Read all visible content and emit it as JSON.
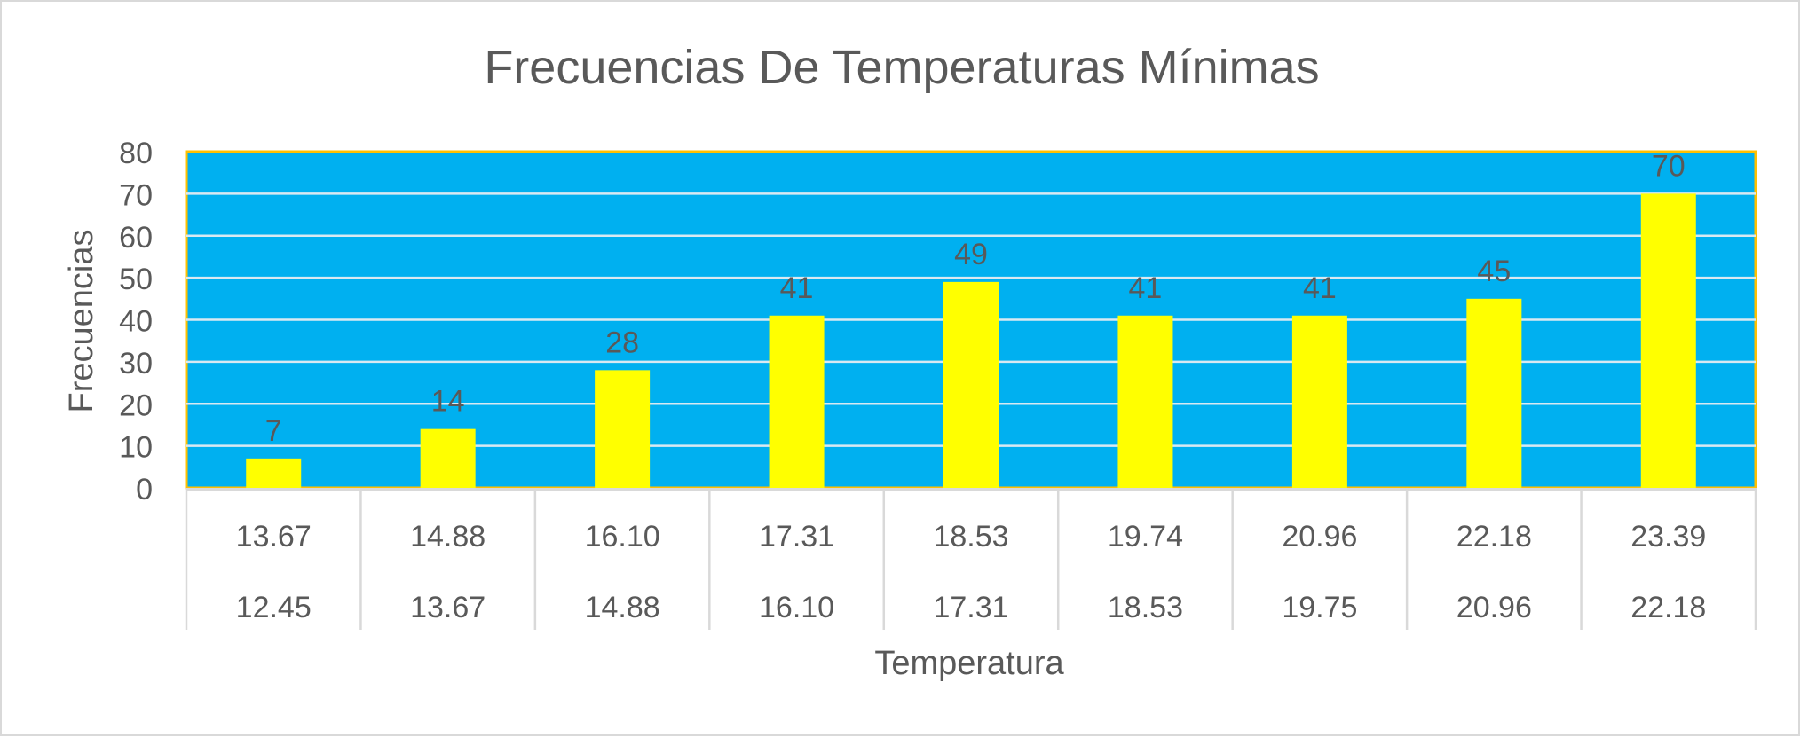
{
  "chart_data": {
    "type": "bar",
    "title": "Frecuencias De Temperaturas Mínimas",
    "xlabel": "Temperatura",
    "ylabel": "Frecuencias",
    "ylim": [
      0,
      80
    ],
    "yticks": [
      0,
      10,
      20,
      30,
      40,
      50,
      60,
      70,
      80
    ],
    "categories": [
      {
        "upper": "13.67",
        "lower": "12.45"
      },
      {
        "upper": "14.88",
        "lower": "13.67"
      },
      {
        "upper": "16.10",
        "lower": "14.88"
      },
      {
        "upper": "17.31",
        "lower": "16.10"
      },
      {
        "upper": "18.53",
        "lower": "17.31"
      },
      {
        "upper": "19.74",
        "lower": "18.53"
      },
      {
        "upper": "20.96",
        "lower": "19.75"
      },
      {
        "upper": "22.18",
        "lower": "20.96"
      },
      {
        "upper": "23.39",
        "lower": "22.18"
      }
    ],
    "values": [
      7,
      14,
      28,
      41,
      49,
      41,
      41,
      45,
      70
    ],
    "data_labels": true,
    "grid": true,
    "colors": {
      "plot_background": "#00B0F0",
      "plot_border": "#FFC000",
      "bar": "#FFFF00",
      "gridline": "#d9e9f2",
      "text": "#595959",
      "axis_line": "#d9d9d9"
    }
  }
}
